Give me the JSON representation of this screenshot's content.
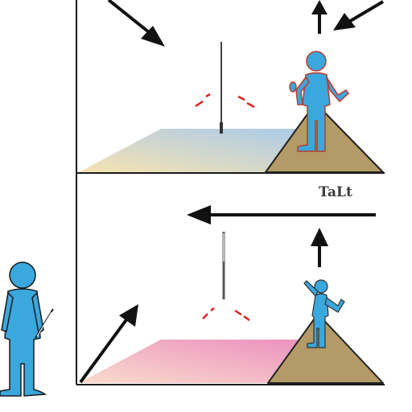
{
  "diagram": {
    "label": "TaLt",
    "colors": {
      "outline": "#1a1a1a",
      "figure_fill": "#3aa7dd",
      "figure_stroke": "#c0392b",
      "mound_fill": "#b39a66",
      "top_plane_start": "#f4e0a8",
      "top_plane_end": "#9ec3ea",
      "bottom_plane_start": "#f8d6c2",
      "bottom_plane_end": "#e879b4",
      "red_marks": "#e02020",
      "pole": "#444444"
    }
  }
}
